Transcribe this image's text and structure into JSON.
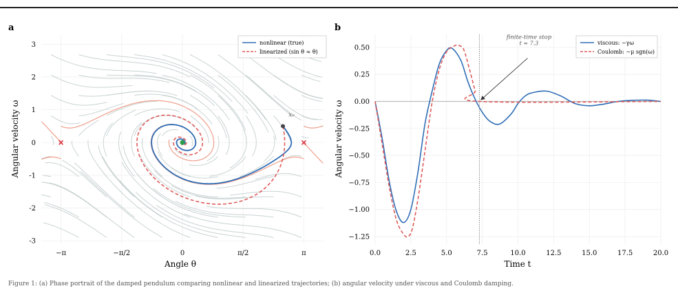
{
  "figure": {
    "caption": "Figure 1: (a) Phase portrait of the damped pendulum comparing nonlinear and linearized trajectories; (b) angular velocity under viscous and Coulomb damping."
  },
  "chart_data": [
    {
      "panel": "a",
      "type": "line",
      "title": "",
      "xlabel": "Angle θ",
      "ylabel": "Angular velocity ω",
      "xlim": [
        -3.65,
        3.65
      ],
      "ylim": [
        -3.1,
        3.3
      ],
      "xticks": [
        "−π",
        "−π/2",
        "0",
        "π/2",
        "π"
      ],
      "xtick_values": [
        -3.14159,
        -1.5708,
        0,
        1.5708,
        3.14159
      ],
      "yticks": [
        -3,
        -2,
        -1,
        0,
        1,
        2,
        3
      ],
      "grid": true,
      "legend_position": "top-right",
      "series": [
        {
          "name": "nonlinear (true)",
          "color": "#2f6db5",
          "style": "solid"
        },
        {
          "name": "linearized (sin θ ≈ θ)",
          "color": "#e05a5a",
          "style": "dashed"
        }
      ],
      "initial_state": {
        "label": "x₀",
        "theta": 2.6,
        "omega": 0.5
      },
      "stable_equilibrium": {
        "theta": 0,
        "omega": 0
      },
      "saddle_points": [
        {
          "theta": -3.14159,
          "omega": 0
        },
        {
          "theta": 3.14159,
          "omega": 0
        }
      ],
      "colors": {
        "streamlines": "#c9d2d2",
        "separatrix": "#ee9e8a",
        "equilibrium": "#2e9e4e",
        "saddle": "#d9333f",
        "start_point": "#444444"
      }
    },
    {
      "panel": "b",
      "type": "line",
      "title": "",
      "xlabel": "Time t",
      "ylabel": "Angular velocity ω",
      "xlim": [
        0,
        20
      ],
      "ylim": [
        -1.32,
        0.62
      ],
      "xticks": [
        0,
        2.5,
        5,
        7.5,
        10,
        12.5,
        15,
        17.5,
        20
      ],
      "xtick_labels": [
        "0.0",
        "2.5",
        "5.0",
        "7.5",
        "10.0",
        "12.5",
        "15.0",
        "17.5",
        "20.0"
      ],
      "yticks": [
        -1.25,
        -1.0,
        -0.75,
        -0.5,
        -0.25,
        0.0,
        0.25,
        0.5
      ],
      "ytick_labels": [
        "−1.25",
        "−1.00",
        "−0.75",
        "−0.50",
        "−0.25",
        "0.00",
        "0.25",
        "0.50"
      ],
      "grid": true,
      "legend_position": "top-right",
      "series": [
        {
          "name": "viscous: −γω",
          "color": "#2f6db5",
          "style": "solid",
          "x": [
            0,
            0.5,
            1.0,
            1.5,
            2.0,
            2.5,
            3.0,
            3.5,
            4.0,
            4.5,
            5.0,
            5.4,
            6.0,
            6.5,
            7.0,
            7.5,
            8.0,
            8.7,
            9.5,
            10.0,
            10.5,
            11.0,
            12.0,
            13.0,
            14.0,
            15.0,
            16.0,
            17.0,
            18.0,
            19.0,
            20.0
          ],
          "y": [
            0,
            -0.35,
            -0.75,
            -1.02,
            -1.12,
            -1.0,
            -0.65,
            -0.2,
            0.1,
            0.35,
            0.47,
            0.49,
            0.38,
            0.18,
            0.02,
            -0.1,
            -0.18,
            -0.21,
            -0.12,
            -0.02,
            0.05,
            0.08,
            0.095,
            0.05,
            -0.02,
            -0.04,
            -0.025,
            0.0,
            0.01,
            0.012,
            0.0
          ]
        },
        {
          "name": "Coulomb: −μ sgn(ω)",
          "color": "#e05a5a",
          "style": "dashed",
          "x": [
            0,
            0.5,
            1.0,
            1.5,
            2.0,
            2.3,
            2.6,
            3.0,
            3.5,
            4.0,
            4.5,
            5.0,
            5.5,
            5.8,
            6.2,
            6.6,
            7.0,
            7.3,
            20.0
          ],
          "y": [
            0,
            -0.4,
            -0.8,
            -1.1,
            -1.23,
            -1.25,
            -1.18,
            -0.9,
            -0.45,
            0.0,
            0.3,
            0.46,
            0.51,
            0.52,
            0.48,
            0.3,
            0.1,
            0.0,
            0.0
          ]
        }
      ],
      "annotation": {
        "title": "finite-time stop",
        "subtitle": "t ≈ 7.3",
        "x": 7.3,
        "y": 0.0
      }
    }
  ]
}
